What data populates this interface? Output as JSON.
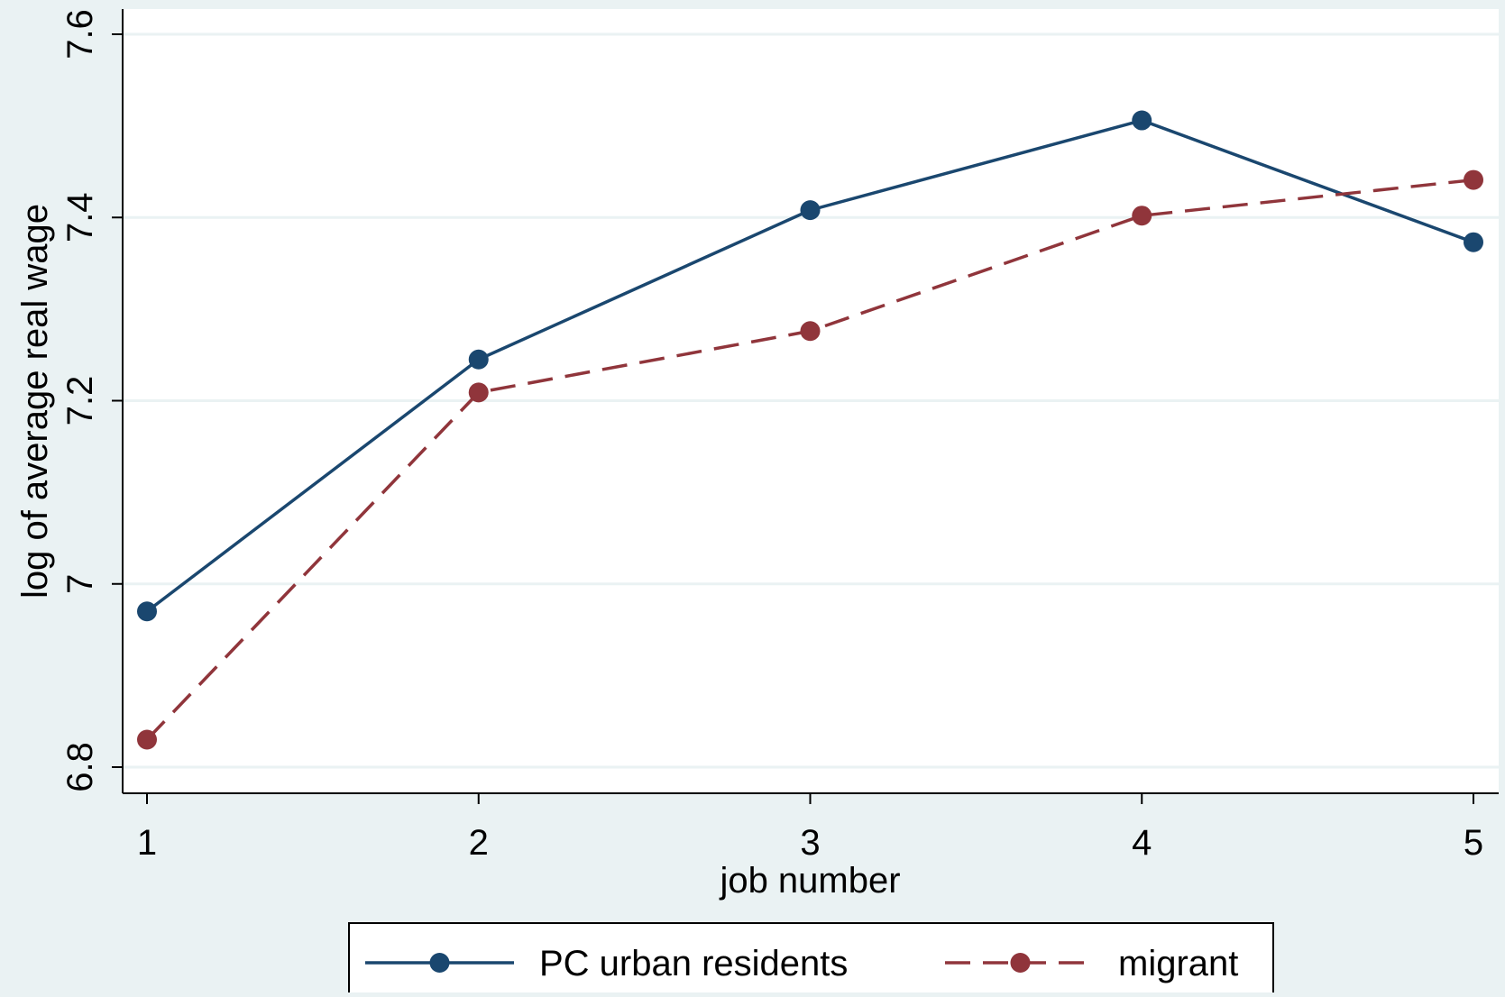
{
  "chart_data": {
    "type": "line",
    "title": "",
    "xlabel": "job number",
    "ylabel": "log of average real wage",
    "x": [
      1,
      2,
      3,
      4,
      5
    ],
    "xticks": [
      "1",
      "2",
      "3",
      "4",
      "5"
    ],
    "yticks": [
      6.8,
      7,
      7.2,
      7.4,
      7.6
    ],
    "ytick_labels": [
      "6.8",
      "7",
      "7.2",
      "7.4",
      "7.6"
    ],
    "xlim": [
      1,
      5
    ],
    "ylim": [
      6.8,
      7.6
    ],
    "grid": true,
    "legend_position": "bottom",
    "series": [
      {
        "name": "PC urban residents",
        "values": [
          6.97,
          7.245,
          7.408,
          7.506,
          7.373
        ],
        "color": "#1a476f",
        "style": "solid",
        "marker": "circle"
      },
      {
        "name": "migrant",
        "values": [
          6.83,
          7.209,
          7.276,
          7.402,
          7.441
        ],
        "color": "#90353b",
        "style": "dashed",
        "marker": "circle"
      }
    ]
  },
  "colors": {
    "background": "#eaf2f3",
    "plot_background": "#ffffff",
    "gridline": "#eaf2f3"
  }
}
